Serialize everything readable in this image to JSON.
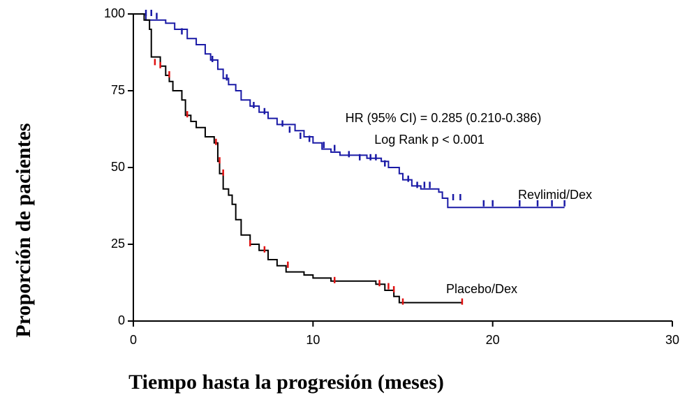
{
  "chart_data": {
    "type": "kaplan-meier",
    "xlabel": "Tiempo hasta la progresión (meses)",
    "ylabel": "Proporción de pacientes",
    "xlim": [
      0,
      30
    ],
    "ylim": [
      0,
      100
    ],
    "xticks": [
      0,
      10,
      20,
      30
    ],
    "yticks": [
      0,
      25,
      50,
      75,
      100
    ],
    "annotations": [
      "HR (95% CI) = 0.285 (0.210-0.386)",
      "Log Rank p < 0.001"
    ],
    "series": [
      {
        "name": "Revlimid/Dex",
        "color": "#1a1aa6",
        "censor_color": "#1a1aa6",
        "x": [
          0,
          0.7,
          1.8,
          2.3,
          3,
          3.5,
          4,
          4.3,
          4.7,
          5,
          5.3,
          5.7,
          6,
          6.5,
          7,
          7.5,
          8,
          9,
          9.5,
          10,
          10.5,
          11,
          11.5,
          13,
          13.8,
          14.2,
          14.8,
          15,
          15.5,
          16,
          17,
          17.2,
          17.5,
          24
        ],
        "values": [
          100,
          98,
          97,
          95,
          92,
          90,
          87,
          85,
          82,
          79,
          77,
          75,
          72,
          70,
          68,
          66,
          64,
          62,
          60,
          58,
          56,
          55,
          54,
          53,
          52,
          50,
          48,
          46,
          44,
          43,
          42,
          40,
          37,
          37
        ],
        "censor_x": [
          0.7,
          1,
          1.3,
          2.7,
          4.4,
          5.2,
          6.7,
          7.3,
          8.3,
          8.7,
          9.3,
          9.8,
          10.6,
          11.2,
          12,
          12.6,
          13.2,
          13.5,
          14,
          15.3,
          15.8,
          16.2,
          16.5,
          17.8,
          18.2,
          19.5,
          20,
          21.5,
          22.5,
          23.3,
          24
        ],
        "censor_values": [
          100,
          100,
          99,
          94,
          85,
          79,
          70,
          68,
          64,
          62,
          60,
          59,
          57,
          56,
          54,
          53,
          53,
          53,
          51,
          46,
          44,
          44,
          44,
          40,
          40,
          38,
          38,
          38,
          38,
          38,
          38
        ]
      },
      {
        "name": "Placebo/Dex",
        "color": "#000000",
        "censor_color": "#e01010",
        "x": [
          0,
          0.6,
          0.9,
          1,
          1.5,
          1.8,
          2,
          2.2,
          2.7,
          2.9,
          3.2,
          3.5,
          4,
          4.5,
          4.7,
          4.8,
          5,
          5.3,
          5.5,
          5.7,
          6,
          6.5,
          7,
          7.5,
          8,
          8.5,
          9.5,
          10,
          11,
          13.5,
          14,
          14.5,
          14.8,
          18.3
        ],
        "values": [
          100,
          98,
          95,
          86,
          83,
          80,
          78,
          75,
          72,
          67,
          65,
          63,
          60,
          58,
          52,
          48,
          43,
          41,
          38,
          33,
          28,
          25,
          23,
          20,
          18,
          16,
          15,
          14,
          13,
          12,
          10,
          8,
          6,
          6
        ],
        "censor_x": [
          1.2,
          1.5,
          2,
          3,
          4.6,
          4.8,
          5,
          6.5,
          7.3,
          8.6,
          11.2,
          13.7,
          14.2,
          14.5,
          15,
          18.3
        ],
        "censor_values": [
          84,
          83,
          80,
          67,
          58,
          52,
          48,
          25,
          23,
          18,
          13,
          12,
          11,
          10,
          6,
          6
        ]
      }
    ]
  }
}
